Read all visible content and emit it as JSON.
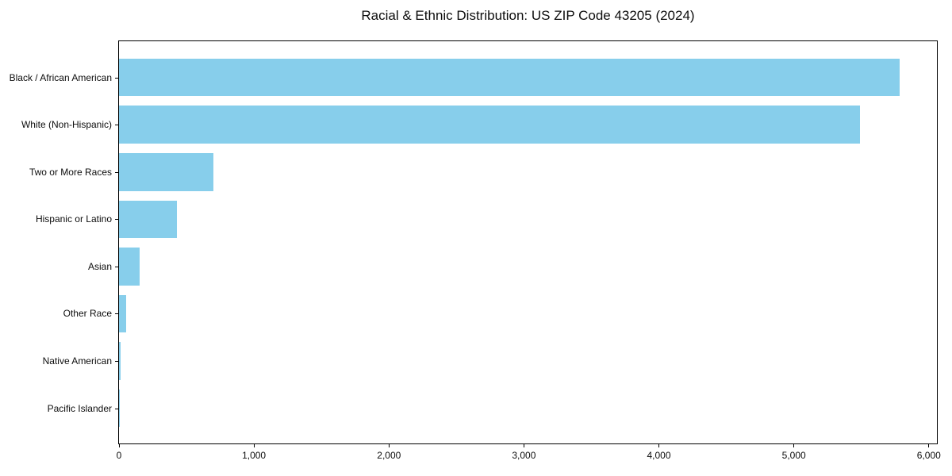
{
  "figure": {
    "title": "Racial & Ethnic Distribution: US ZIP Code 43205 (2024)"
  },
  "chart_data": {
    "type": "bar",
    "orientation": "horizontal",
    "title": "Racial & Ethnic Distribution: US ZIP Code 43205 (2024)",
    "xlabel": "",
    "ylabel": "",
    "categories": [
      "Black / African American",
      "White (Non-Hispanic)",
      "Two or More Races",
      "Hispanic or Latino",
      "Asian",
      "Other Race",
      "Native American",
      "Pacific Islander"
    ],
    "values": [
      5786,
      5487,
      700,
      430,
      150,
      55,
      10,
      2
    ],
    "xlim": [
      0,
      6060
    ],
    "x_ticks": [
      0,
      1000,
      2000,
      3000,
      4000,
      5000,
      6000
    ],
    "x_tick_labels": [
      "0",
      "1,000",
      "2,000",
      "3,000",
      "4,000",
      "5,000",
      "6,000"
    ],
    "grid": false,
    "legend": null,
    "bar_color": "#87CEEB",
    "axis_color": "#000000",
    "background_color": "#ffffff",
    "text_color": "#0d0d0d"
  }
}
